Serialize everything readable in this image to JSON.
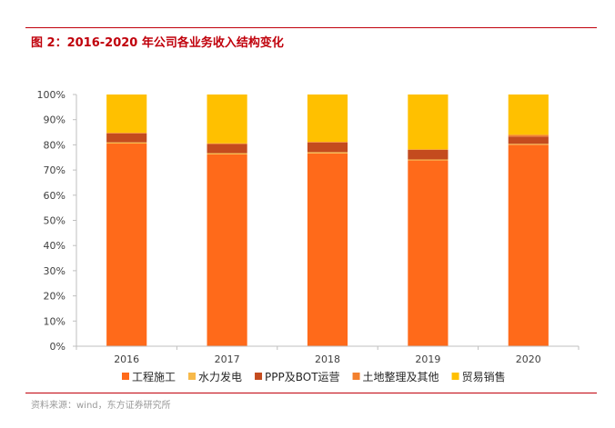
{
  "header": {
    "title": "图 2：2016-2020 年公司各业务收入结构变化"
  },
  "footer": {
    "source": "资料来源：wind，东方证券研究所"
  },
  "chart_data": {
    "type": "bar",
    "stacked": true,
    "categories": [
      "2016",
      "2017",
      "2018",
      "2019",
      "2020"
    ],
    "series": [
      {
        "name": "工程施工",
        "color": "#ff6a1a",
        "values": [
          80.5,
          76.2,
          76.6,
          73.8,
          80.0
        ]
      },
      {
        "name": "水力发电",
        "color": "#f7b94a",
        "values": [
          0.5,
          0.5,
          0.5,
          0.4,
          0.4
        ]
      },
      {
        "name": "PPP及BOT运营",
        "color": "#c44b1e",
        "values": [
          3.5,
          3.6,
          3.8,
          3.8,
          2.9
        ]
      },
      {
        "name": "土地整理及其他",
        "color": "#f3802e",
        "values": [
          0.3,
          0.3,
          0.3,
          0.2,
          0.7
        ]
      },
      {
        "name": "贸易销售",
        "color": "#ffc000",
        "values": [
          15.2,
          19.4,
          18.8,
          21.8,
          16.0
        ]
      }
    ],
    "y_ticks": [
      "0%",
      "10%",
      "20%",
      "30%",
      "40%",
      "50%",
      "60%",
      "70%",
      "80%",
      "90%",
      "100%"
    ],
    "ylim": [
      0,
      100
    ],
    "y_unit": "%",
    "grid": false,
    "legend_position": "bottom"
  }
}
